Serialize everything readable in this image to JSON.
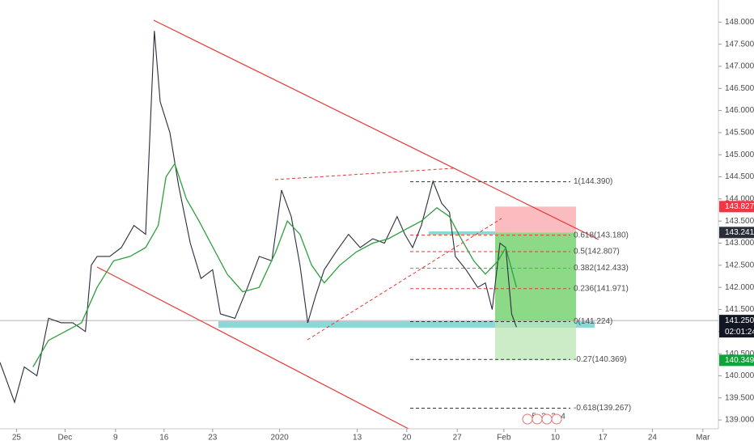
{
  "chart_data": {
    "type": "line",
    "xlim": [
      -1.7,
      72.3
    ],
    "ylim": [
      138.8,
      148.5
    ],
    "xticks": [
      {
        "value": 0,
        "label": "25"
      },
      {
        "value": 5,
        "label": "Dec"
      },
      {
        "value": 10.2,
        "label": "9"
      },
      {
        "value": 15.2,
        "label": "16"
      },
      {
        "value": 20.2,
        "label": "23"
      },
      {
        "value": 27.1,
        "label": "2020"
      },
      {
        "value": 35.1,
        "label": "13"
      },
      {
        "value": 40.2,
        "label": "20"
      },
      {
        "value": 45.4,
        "label": "27"
      },
      {
        "value": 50.2,
        "label": "Feb"
      },
      {
        "value": 55.5,
        "label": "10"
      },
      {
        "value": 60.4,
        "label": "17"
      },
      {
        "value": 65.5,
        "label": "24"
      },
      {
        "value": 70.7,
        "label": "Mar"
      }
    ],
    "yticks": [
      {
        "value": 139,
        "label": "139.000"
      },
      {
        "value": 139.5,
        "label": "139.500"
      },
      {
        "value": 140,
        "label": "140.000"
      },
      {
        "value": 140.5,
        "label": "140.500"
      },
      {
        "value": 141,
        "label": "141.000"
      },
      {
        "value": 141.5,
        "label": "141.500"
      },
      {
        "value": 142,
        "label": "142.000"
      },
      {
        "value": 142.5,
        "label": "142.500"
      },
      {
        "value": 143,
        "label": "143.000"
      },
      {
        "value": 143.5,
        "label": "143.500"
      },
      {
        "value": 144,
        "label": "144.000"
      },
      {
        "value": 144.5,
        "label": "144.500"
      },
      {
        "value": 145,
        "label": "145.000"
      },
      {
        "value": 145.5,
        "label": "145.500"
      },
      {
        "value": 146,
        "label": "146.000"
      },
      {
        "value": 146.5,
        "label": "146.500"
      },
      {
        "value": 147,
        "label": "147.000"
      },
      {
        "value": 147.5,
        "label": "147.500"
      },
      {
        "value": 148,
        "label": "148.000"
      }
    ],
    "series": [
      {
        "color": "#2a2e39",
        "x": [
          -1.7,
          -0.2,
          0.8,
          2.1,
          3.3,
          4.6,
          5.8,
          7.1,
          7.7,
          8.3,
          9.6,
          10.8,
          12.1,
          13.3,
          14.2,
          14.8,
          15.8,
          16.7,
          17.9,
          19,
          20.2,
          21,
          22.5,
          23.8,
          25,
          26.3,
          27.3,
          28.3,
          29.2,
          30,
          30.8,
          31.7,
          32.9,
          34.2,
          35.4,
          36.7,
          37.9,
          39.2,
          40,
          40.8,
          41.7,
          42.9,
          43.8,
          44.6,
          45.2,
          46.3,
          47.5,
          48.3,
          49,
          49.8,
          50.4,
          51,
          51.5
        ],
        "values": [
          140.3,
          139.4,
          140.2,
          140.0,
          141.3,
          141.2,
          141.2,
          141.0,
          142.5,
          142.7,
          142.7,
          142.9,
          143.4,
          143.2,
          147.8,
          146.2,
          145.5,
          144.3,
          143.0,
          142.2,
          142.4,
          141.4,
          141.3,
          142.0,
          142.7,
          142.6,
          144.2,
          143.6,
          142.5,
          141.2,
          141.8,
          142.4,
          142.8,
          143.2,
          142.9,
          143.1,
          143.0,
          143.6,
          143.2,
          142.9,
          143.4,
          144.4,
          143.9,
          143.7,
          142.7,
          142.4,
          142.0,
          142.1,
          141.5,
          143.0,
          142.9,
          141.4,
          141.1
        ]
      },
      {
        "color": "#2e9e3e",
        "x": [
          1.7,
          3.3,
          5,
          6.7,
          8.3,
          10,
          11.7,
          13.3,
          14.6,
          15.4,
          16.3,
          17.5,
          18.8,
          20,
          21.7,
          23.3,
          25,
          26.7,
          27.9,
          29.2,
          30.4,
          31.7,
          33.3,
          35,
          36.7,
          38.3,
          40,
          41.7,
          43.3,
          44.6,
          45.8,
          47.1,
          48.3,
          49.6,
          50.4,
          51.5
        ],
        "values": [
          140.2,
          140.8,
          141.0,
          141.2,
          142.0,
          142.6,
          142.7,
          142.9,
          143.4,
          144.5,
          144.8,
          144.0,
          143.5,
          143.0,
          142.3,
          141.9,
          142.0,
          142.8,
          143.5,
          143.2,
          142.5,
          142.1,
          142.5,
          142.8,
          143.0,
          143.1,
          143.3,
          143.5,
          143.8,
          143.6,
          143.1,
          142.6,
          142.3,
          142.6,
          142.9,
          142.0
        ]
      }
    ],
    "fib_levels": [
      {
        "value": 144.39,
        "label": "1(144.390)",
        "color": "#333333"
      },
      {
        "value": 143.18,
        "label": "0.618(143.180)",
        "color": "#e53935"
      },
      {
        "value": 142.807,
        "label": "0.5(142.807)",
        "color": "#e53935"
      },
      {
        "value": 142.433,
        "label": "0.382(142.433)",
        "color": "#8a8a8a"
      },
      {
        "value": 141.971,
        "label": "0.236(141.971)",
        "color": "#e53935"
      },
      {
        "value": 141.224,
        "label": "0(141.224)",
        "color": "#333333"
      },
      {
        "value": 140.369,
        "label": "-0.27(140.369)",
        "color": "#333333"
      },
      {
        "value": 139.267,
        "label": "-0.618(139.267)",
        "color": "#333333"
      }
    ],
    "price_badges": [
      {
        "value": 143.827,
        "label": "143.827",
        "color": "#f23645"
      },
      {
        "value": 143.241,
        "label": "143.241",
        "color": "#2a2e39"
      },
      {
        "value": 141.25,
        "label": "141.250",
        "color": "#131722"
      },
      {
        "value": 140.349,
        "label": "140.349",
        "color": "#0fa33a"
      }
    ],
    "countdown": "02:01:24",
    "event_markers": [
      "5",
      "3",
      "2",
      "4"
    ]
  }
}
